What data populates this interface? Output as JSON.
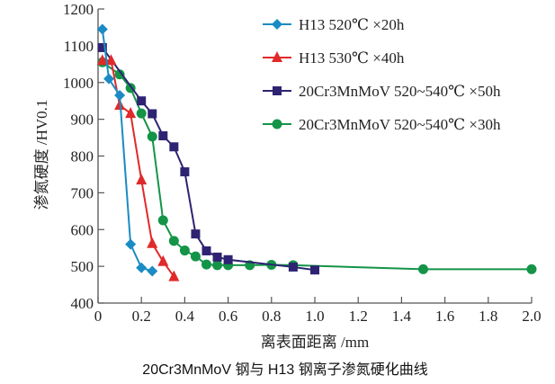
{
  "chart_data": {
    "type": "line",
    "title": "20Cr3MnMoV 钢与 H13 钢离子渗氮硬化曲线",
    "xlabel": "离表面距离 /mm",
    "ylabel": "渗氮硬度 /HV0.1",
    "xlim": [
      0,
      2.0
    ],
    "ylim": [
      400,
      1200
    ],
    "xticks": [
      "0",
      "0.2",
      "0.4",
      "0.6",
      "0.8",
      "1.0",
      "1.2",
      "1.4",
      "1.6",
      "1.8",
      "2.0"
    ],
    "yticks": [
      "400",
      "500",
      "600",
      "700",
      "800",
      "900",
      "1000",
      "1100",
      "1200"
    ],
    "grid": false,
    "legend_position": "top-right",
    "series": [
      {
        "name": "H13 520℃ ×20h",
        "color": "#1a8bc4",
        "marker": "diamond",
        "x": [
          0.02,
          0.05,
          0.1,
          0.15,
          0.2,
          0.25
        ],
        "y": [
          1145,
          1010,
          965,
          560,
          496,
          487
        ]
      },
      {
        "name": "H13 530℃ ×40h",
        "color": "#e02a2a",
        "marker": "triangle",
        "x": [
          0.02,
          0.06,
          0.1,
          0.15,
          0.2,
          0.25,
          0.3,
          0.35
        ],
        "y": [
          1060,
          1060,
          938,
          916,
          735,
          562,
          513,
          472
        ]
      },
      {
        "name": "20Cr3MnMoV 520~540℃ ×50h",
        "color": "#2e2372",
        "marker": "square",
        "x": [
          0.02,
          0.2,
          0.25,
          0.3,
          0.35,
          0.4,
          0.45,
          0.5,
          0.55,
          0.6,
          0.9,
          1.0
        ],
        "y": [
          1095,
          950,
          915,
          855,
          825,
          757,
          588,
          542,
          525,
          518,
          498,
          490
        ]
      },
      {
        "name": "20Cr3MnMoV 520~540℃ ×30h",
        "color": "#139447",
        "marker": "circle",
        "x": [
          0.02,
          0.1,
          0.15,
          0.2,
          0.25,
          0.3,
          0.35,
          0.4,
          0.45,
          0.5,
          0.55,
          0.6,
          0.7,
          0.8,
          0.9,
          1.5,
          2.0
        ],
        "y": [
          1055,
          1022,
          985,
          916,
          853,
          625,
          569,
          543,
          527,
          505,
          503,
          503,
          503,
          504,
          503,
          492,
          492
        ]
      }
    ]
  }
}
